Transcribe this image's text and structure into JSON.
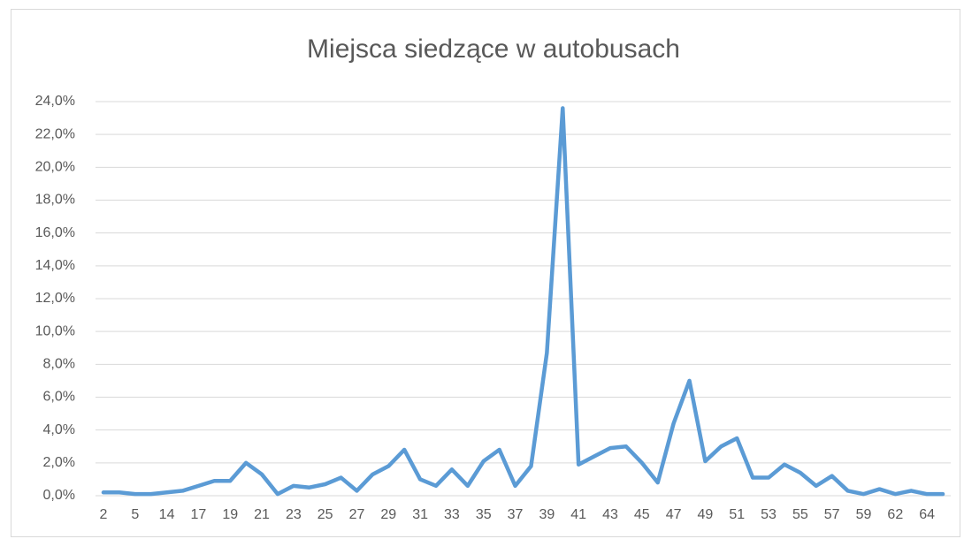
{
  "chart_data": {
    "type": "line",
    "title": "Miejsca siedzące w autobusach",
    "categories": [
      "2",
      null,
      "5",
      null,
      "14",
      null,
      "17",
      null,
      "19",
      null,
      "21",
      null,
      "23",
      null,
      "25",
      null,
      "27",
      null,
      "29",
      null,
      "31",
      null,
      "33",
      null,
      "35",
      null,
      "37",
      null,
      "39",
      null,
      "41",
      null,
      "43",
      null,
      "45",
      null,
      "47",
      null,
      "49",
      null,
      "51",
      null,
      "53",
      null,
      "55",
      null,
      "57",
      null,
      "59",
      null,
      "62",
      null,
      "64",
      null
    ],
    "series": [
      {
        "name": "Miejsca siedzące",
        "color": "#5b9bd5",
        "values": [
          0.2,
          0.2,
          0.1,
          0.1,
          0.2,
          0.3,
          0.6,
          0.9,
          0.9,
          2.0,
          1.3,
          0.1,
          0.6,
          0.5,
          0.7,
          1.1,
          0.3,
          1.3,
          1.8,
          2.8,
          1.0,
          0.6,
          1.6,
          0.6,
          2.1,
          2.8,
          0.6,
          1.8,
          8.7,
          23.6,
          1.9,
          2.4,
          2.9,
          3.0,
          2.0,
          0.8,
          4.4,
          7.0,
          2.1,
          3.0,
          3.5,
          1.1,
          1.1,
          1.9,
          1.4,
          0.6,
          1.2,
          0.3,
          0.1,
          0.4,
          0.1,
          0.3,
          0.1,
          0.1
        ]
      }
    ],
    "ylim": [
      0,
      24
    ],
    "yticks": [
      {
        "value": 0,
        "label": "0,0%"
      },
      {
        "value": 2,
        "label": "2,0%"
      },
      {
        "value": 4,
        "label": "4,0%"
      },
      {
        "value": 6,
        "label": "6,0%"
      },
      {
        "value": 8,
        "label": "8,0%"
      },
      {
        "value": 10,
        "label": "10,0%"
      },
      {
        "value": 12,
        "label": "12,0%"
      },
      {
        "value": 14,
        "label": "14,0%"
      },
      {
        "value": 16,
        "label": "16,0%"
      },
      {
        "value": 18,
        "label": "18,0%"
      },
      {
        "value": 20,
        "label": "20,0%"
      },
      {
        "value": 22,
        "label": "22,0%"
      },
      {
        "value": 24,
        "label": "24,0%"
      }
    ],
    "grid": true
  }
}
